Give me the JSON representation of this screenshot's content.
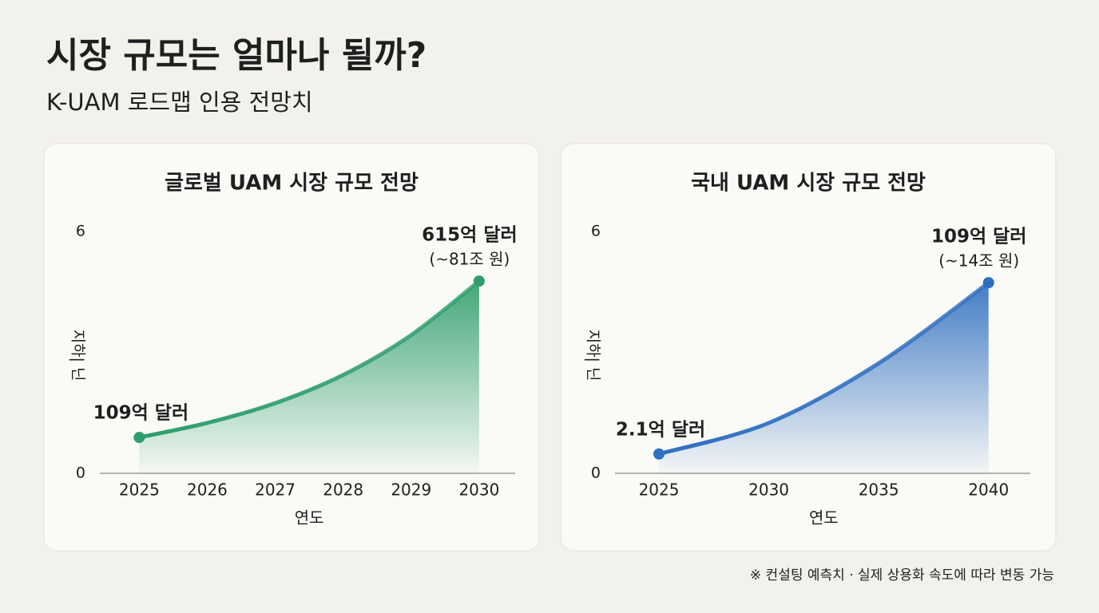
{
  "title": "시장 규모는 얼마나 될까?",
  "subtitle": "K-UAM 로드맵 인용 전망치",
  "note": "※ 컨설팅 예측치 · 실제 상용화 속도에 따라 변동 가능",
  "chart_data": [
    {
      "type": "area",
      "title": "글로벌 UAM 시장 규모 전망",
      "x": [
        2025,
        2026,
        2027,
        2028,
        2029,
        2030
      ],
      "values": [
        0.89,
        1.25,
        1.74,
        2.44,
        3.43,
        4.77
      ],
      "color": "#2e9e6b",
      "xlim": [
        2024.42,
        2030.53
      ],
      "ylim": [
        0,
        6
      ],
      "xticks": [
        2025,
        2026,
        2027,
        2028,
        2029,
        2030
      ],
      "yticks": [
        0,
        6
      ],
      "xlabel": "연도",
      "ylabel": "지하| 닌",
      "annotations": [
        {
          "x": 2025,
          "text": "109억 달러"
        },
        {
          "x": 2030,
          "text": "615억 달러",
          "subtext": "(~81조 원)"
        }
      ]
    },
    {
      "type": "area",
      "title": "국내 UAM 시장 규모 전망",
      "x": [
        2025,
        2030,
        2035,
        2040
      ],
      "values": [
        0.48,
        1.25,
        2.73,
        4.73
      ],
      "color": "#2f6fc0",
      "xlim": [
        2023,
        2041.9
      ],
      "ylim": [
        0,
        6
      ],
      "xticks": [
        2025,
        2030,
        2035,
        2040
      ],
      "yticks": [
        0,
        6
      ],
      "xlabel": "연도",
      "ylabel": "지하| 닌",
      "annotations": [
        {
          "x": 2025,
          "text": "2.1억 달러"
        },
        {
          "x": 2040,
          "text": "109억 달러",
          "subtext": "(~14조 원)"
        }
      ]
    }
  ]
}
